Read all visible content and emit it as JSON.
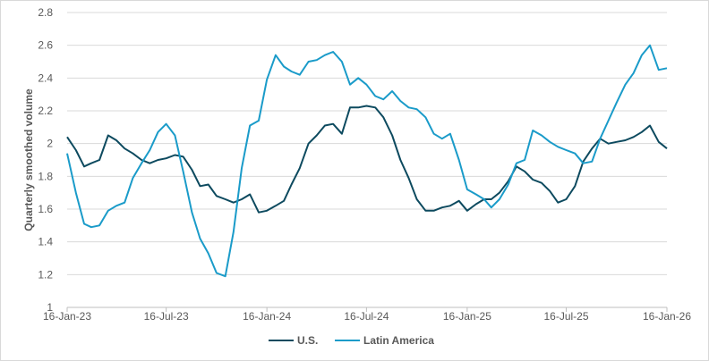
{
  "chart_data": {
    "type": "line",
    "title": "",
    "xlabel": "",
    "ylabel": "Quarterly smoothed volume",
    "ylim": [
      1,
      2.8
    ],
    "yticks": [
      "1",
      "1.2",
      "1.4",
      "1.6",
      "1.8",
      "2",
      "2.2",
      "2.4",
      "2.6",
      "2.8"
    ],
    "xlim": [
      "2023-01-16",
      "2026-01-16"
    ],
    "xticks": [
      {
        "date": "2023-01-16",
        "label": "16-Jan-23"
      },
      {
        "date": "2023-07-16",
        "label": "16-Jul-23"
      },
      {
        "date": "2024-01-16",
        "label": "16-Jan-24"
      },
      {
        "date": "2024-07-16",
        "label": "16-Jul-24"
      },
      {
        "date": "2025-01-16",
        "label": "16-Jan-25"
      },
      {
        "date": "2025-07-16",
        "label": "16-Jul-25"
      },
      {
        "date": "2026-01-16",
        "label": "16-Jan-26"
      }
    ],
    "grid": "horizontal",
    "legend": "bottom",
    "x": [
      "2023-01-16",
      "2023-02-01",
      "2023-02-16",
      "2023-03-01",
      "2023-03-16",
      "2023-04-01",
      "2023-04-16",
      "2023-05-01",
      "2023-05-16",
      "2023-06-01",
      "2023-06-16",
      "2023-07-01",
      "2023-07-16",
      "2023-08-01",
      "2023-08-16",
      "2023-09-01",
      "2023-09-16",
      "2023-10-01",
      "2023-10-16",
      "2023-11-01",
      "2023-11-16",
      "2023-12-01",
      "2023-12-16",
      "2024-01-01",
      "2024-01-16",
      "2024-02-01",
      "2024-02-16",
      "2024-03-01",
      "2024-03-16",
      "2024-04-01",
      "2024-04-16",
      "2024-05-01",
      "2024-05-16",
      "2024-06-01",
      "2024-06-16",
      "2024-07-01",
      "2024-07-16",
      "2024-08-01",
      "2024-08-16",
      "2024-09-01",
      "2024-09-16",
      "2024-10-01",
      "2024-10-16",
      "2024-11-01",
      "2024-11-16",
      "2024-12-01",
      "2024-12-16",
      "2025-01-01",
      "2025-01-16",
      "2025-02-01",
      "2025-02-16",
      "2025-03-01",
      "2025-03-16",
      "2025-04-01",
      "2025-04-16",
      "2025-05-01",
      "2025-05-16",
      "2025-06-01",
      "2025-06-16",
      "2025-07-01",
      "2025-07-16",
      "2025-08-01",
      "2025-08-16",
      "2025-09-01",
      "2025-09-16",
      "2025-10-01",
      "2025-10-16",
      "2025-11-01",
      "2025-11-16",
      "2025-12-01",
      "2025-12-16",
      "2026-01-01",
      "2026-01-16"
    ],
    "series": [
      {
        "name": "U.S.",
        "color": "#0d4a5f",
        "values": [
          2.04,
          1.96,
          1.86,
          1.88,
          1.9,
          2.05,
          2.02,
          1.97,
          1.94,
          1.9,
          1.88,
          1.9,
          1.91,
          1.93,
          1.92,
          1.84,
          1.74,
          1.75,
          1.68,
          1.66,
          1.64,
          1.66,
          1.69,
          1.58,
          1.59,
          1.62,
          1.65,
          1.75,
          1.85,
          2.0,
          2.05,
          2.11,
          2.12,
          2.06,
          2.22,
          2.22,
          2.23,
          2.22,
          2.16,
          2.05,
          1.9,
          1.79,
          1.66,
          1.59,
          1.59,
          1.61,
          1.62,
          1.65,
          1.59,
          1.63,
          1.66,
          1.66,
          1.7,
          1.77,
          1.86,
          1.83,
          1.78,
          1.76,
          1.71,
          1.64,
          1.66,
          1.74,
          1.89,
          1.97,
          2.03,
          2.0,
          2.01,
          2.02,
          2.04,
          2.07,
          2.11,
          2.01,
          1.97
        ]
      },
      {
        "name": "Latin America",
        "color": "#1a9bc9",
        "values": [
          1.94,
          1.7,
          1.51,
          1.49,
          1.5,
          1.59,
          1.62,
          1.64,
          1.79,
          1.88,
          1.96,
          2.07,
          2.12,
          2.05,
          1.83,
          1.58,
          1.42,
          1.33,
          1.21,
          1.19,
          1.46,
          1.85,
          2.11,
          2.14,
          2.39,
          2.54,
          2.47,
          2.44,
          2.42,
          2.5,
          2.51,
          2.54,
          2.56,
          2.5,
          2.36,
          2.4,
          2.36,
          2.29,
          2.27,
          2.32,
          2.26,
          2.22,
          2.21,
          2.16,
          2.06,
          2.03,
          2.06,
          1.9,
          1.72,
          1.69,
          1.66,
          1.61,
          1.66,
          1.75,
          1.88,
          1.9,
          2.08,
          2.05,
          2.01,
          1.98,
          1.96,
          1.94,
          1.88,
          1.89,
          2.03,
          2.14,
          2.25,
          2.36,
          2.43,
          2.54,
          2.6,
          2.45,
          2.46
        ]
      }
    ]
  }
}
